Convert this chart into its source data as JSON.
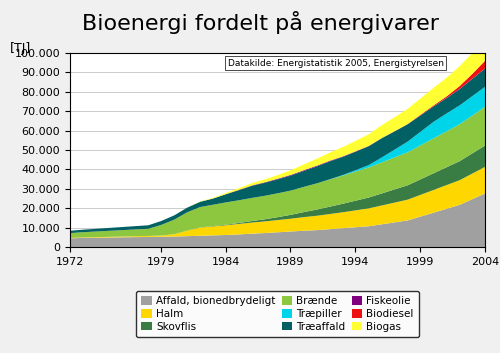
{
  "title": "Bioenergi fordelt på energivarer",
  "ylabel": "[TJ]",
  "datasource_note": "Datakilde: Energistatistik 2005, Energistyrelsen",
  "years": [
    1972,
    1973,
    1974,
    1975,
    1976,
    1977,
    1978,
    1979,
    1980,
    1981,
    1982,
    1983,
    1984,
    1985,
    1986,
    1987,
    1988,
    1989,
    1990,
    1991,
    1992,
    1993,
    1994,
    1995,
    1996,
    1997,
    1998,
    1999,
    2000,
    2001,
    2002,
    2003,
    2004
  ],
  "xticks": [
    1972,
    1979,
    1984,
    1989,
    1994,
    1999,
    2004
  ],
  "ylim": [
    0,
    100000
  ],
  "yticks": [
    0,
    10000,
    20000,
    30000,
    40000,
    50000,
    60000,
    70000,
    80000,
    90000,
    100000
  ],
  "ytick_labels": [
    "0",
    "10.000",
    "20.000",
    "30.000",
    "40.000",
    "50.000",
    "60.000",
    "70.000",
    "80.000",
    "90.000",
    "100.000"
  ],
  "series": {
    "Affald, bionedbrydeligt": {
      "color": "#a0a0a0",
      "values": [
        4800,
        5000,
        5100,
        5200,
        5300,
        5400,
        5500,
        5600,
        5700,
        5900,
        6100,
        6300,
        6500,
        6800,
        7200,
        7500,
        7900,
        8300,
        8700,
        9000,
        9500,
        10000,
        10500,
        11000,
        12000,
        13000,
        14000,
        16000,
        18000,
        20000,
        22000,
        25000,
        28000
      ]
    },
    "Halm": {
      "color": "#ffd700",
      "values": [
        200,
        250,
        300,
        350,
        400,
        450,
        500,
        600,
        1200,
        2800,
        4200,
        4600,
        5000,
        5400,
        5700,
        6000,
        6300,
        6600,
        7000,
        7400,
        7800,
        8200,
        8700,
        9200,
        9700,
        10200,
        10700,
        11200,
        11700,
        12200,
        12700,
        13200,
        13700
      ]
    },
    "Skovflis": {
      "color": "#3a7d44",
      "values": [
        0,
        0,
        0,
        0,
        0,
        0,
        0,
        0,
        0,
        0,
        100,
        200,
        300,
        500,
        800,
        1100,
        1500,
        2000,
        2600,
        3200,
        3800,
        4400,
        5000,
        5600,
        6200,
        6800,
        7400,
        8000,
        8600,
        9200,
        9800,
        10400,
        11000
      ]
    },
    "Brænde": {
      "color": "#8dc63f",
      "values": [
        2500,
        2700,
        2900,
        3100,
        3300,
        3500,
        3700,
        5500,
        7500,
        9500,
        10500,
        11000,
        11500,
        11700,
        11900,
        12100,
        12300,
        12500,
        13000,
        13500,
        14000,
        14500,
        15000,
        15500,
        16000,
        16500,
        17000,
        17500,
        18000,
        18500,
        19000,
        19500,
        20000
      ]
    },
    "Træpiller": {
      "color": "#00d4e8",
      "values": [
        0,
        0,
        0,
        0,
        0,
        0,
        0,
        0,
        0,
        0,
        0,
        0,
        0,
        0,
        0,
        0,
        0,
        0,
        0,
        0,
        100,
        300,
        700,
        1200,
        2500,
        4000,
        5500,
        7000,
        8500,
        9200,
        9700,
        10000,
        10300
      ]
    },
    "Træaffald": {
      "color": "#006064",
      "values": [
        1200,
        1300,
        1400,
        1500,
        1600,
        1700,
        1800,
        2000,
        2200,
        2400,
        2700,
        3200,
        4200,
        5200,
        6200,
        6700,
        7200,
        7700,
        8200,
        8700,
        9200,
        9300,
        9500,
        9700,
        9900,
        9400,
        8900,
        8400,
        7900,
        7900,
        8400,
        8900,
        9400
      ]
    },
    "Fiskeolie": {
      "color": "#800080",
      "values": [
        0,
        0,
        0,
        0,
        0,
        0,
        0,
        0,
        0,
        0,
        0,
        0,
        80,
        180,
        230,
        280,
        330,
        380,
        390,
        390,
        340,
        290,
        240,
        190,
        140,
        90,
        90,
        90,
        90,
        90,
        90,
        90,
        90
      ]
    },
    "Biodiesel": {
      "color": "#ee1111",
      "values": [
        0,
        0,
        0,
        0,
        0,
        0,
        0,
        0,
        0,
        0,
        0,
        0,
        0,
        0,
        0,
        0,
        0,
        0,
        0,
        0,
        0,
        0,
        0,
        0,
        0,
        0,
        100,
        300,
        500,
        800,
        1500,
        2500,
        4000
      ]
    },
    "Biogas": {
      "color": "#ffff33",
      "values": [
        0,
        0,
        0,
        0,
        0,
        0,
        0,
        0,
        0,
        50,
        150,
        350,
        600,
        900,
        1200,
        1500,
        1900,
        2400,
        3000,
        3600,
        4200,
        4800,
        5400,
        6000,
        6600,
        7200,
        7800,
        8400,
        9000,
        9600,
        10200,
        10800,
        11400
      ]
    }
  },
  "legend_order": [
    "Affald, bionedbrydeligt",
    "Halm",
    "Skovflis",
    "Brænde",
    "Træpiller",
    "Træaffald",
    "Fiskeolie",
    "Biodiesel",
    "Biogas"
  ],
  "background_color": "#f0f0f0",
  "plot_bg_color": "#ffffff",
  "title_fontsize": 16,
  "axis_fontsize": 8,
  "legend_fontsize": 7.5
}
